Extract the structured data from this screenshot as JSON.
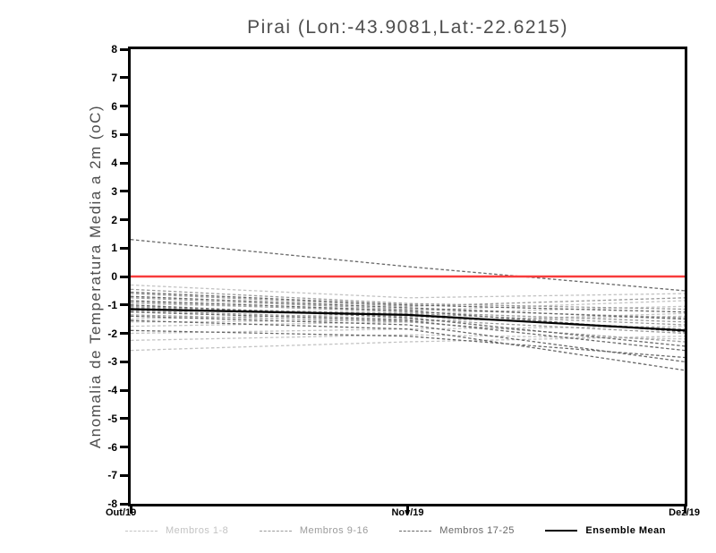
{
  "chart_data": {
    "type": "line",
    "title": "Pirai (Lon:-43.9081,Lat:-22.6215)",
    "ylabel": "Anomalia de Temperatura Media a 2m (oC)",
    "xlabel": "",
    "x_ticks": [
      "Out/19",
      "Nov/19",
      "Dez/19"
    ],
    "ylim": [
      -8,
      8
    ],
    "y_tick_step": 1,
    "grid": false,
    "legend_position": "bottom",
    "title_color": "#4d4d4d",
    "axis_color": "#000000",
    "zero_line": {
      "value": 0,
      "color": "#f83b3b"
    },
    "groups": [
      {
        "name": "Membros 1-8",
        "color": "#c3c3c3",
        "style": "dashed"
      },
      {
        "name": "Membros 9-16",
        "color": "#9b9b9b",
        "style": "dashed"
      },
      {
        "name": "Membros 17-25",
        "color": "#676767",
        "style": "dashed"
      },
      {
        "name": "Ensemble Mean",
        "color": "#000000",
        "style": "solid"
      }
    ],
    "members": [
      {
        "group": 0,
        "values": [
          -0.3,
          -0.75,
          -0.6
        ]
      },
      {
        "group": 0,
        "values": [
          -0.95,
          -1.2,
          -0.85
        ]
      },
      {
        "group": 0,
        "values": [
          -1.5,
          -1.3,
          -1.05
        ]
      },
      {
        "group": 0,
        "values": [
          -1.6,
          -1.55,
          -1.4
        ]
      },
      {
        "group": 0,
        "values": [
          -1.75,
          -1.6,
          -1.3
        ]
      },
      {
        "group": 0,
        "values": [
          -2.0,
          -1.85,
          -1.75
        ]
      },
      {
        "group": 0,
        "values": [
          -2.25,
          -2.05,
          -2.2
        ]
      },
      {
        "group": 0,
        "values": [
          -2.6,
          -2.3,
          -2.1
        ]
      },
      {
        "group": 1,
        "values": [
          -0.45,
          -0.95,
          -1.15
        ]
      },
      {
        "group": 1,
        "values": [
          -0.6,
          -1.05,
          -0.75
        ]
      },
      {
        "group": 1,
        "values": [
          -0.75,
          -1.15,
          -1.45
        ]
      },
      {
        "group": 1,
        "values": [
          -0.9,
          -1.25,
          -1.6
        ]
      },
      {
        "group": 1,
        "values": [
          -1.05,
          -1.4,
          -1.85
        ]
      },
      {
        "group": 1,
        "values": [
          -1.1,
          -1.3,
          -1.7
        ]
      },
      {
        "group": 1,
        "values": [
          -1.2,
          -1.5,
          -2.0
        ]
      },
      {
        "group": 1,
        "values": [
          -1.35,
          -1.6,
          -2.3
        ]
      },
      {
        "group": 2,
        "values": [
          1.3,
          0.35,
          -0.5
        ]
      },
      {
        "group": 2,
        "values": [
          -0.55,
          -1.0,
          -1.25
        ]
      },
      {
        "group": 2,
        "values": [
          -0.7,
          -1.1,
          -1.5
        ]
      },
      {
        "group": 2,
        "values": [
          -0.85,
          -1.2,
          -1.95
        ]
      },
      {
        "group": 2,
        "values": [
          -1.0,
          -1.45,
          -2.45
        ]
      },
      {
        "group": 2,
        "values": [
          -1.25,
          -1.55,
          -2.6
        ]
      },
      {
        "group": 2,
        "values": [
          -1.4,
          -1.7,
          -3.0
        ]
      },
      {
        "group": 2,
        "values": [
          -1.55,
          -1.85,
          -3.3
        ]
      },
      {
        "group": 2,
        "values": [
          -1.9,
          -2.1,
          -2.85
        ]
      }
    ],
    "ensemble_mean": [
      -1.15,
      -1.35,
      -1.9
    ]
  }
}
